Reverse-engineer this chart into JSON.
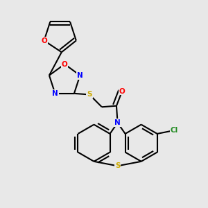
{
  "background_color": "#e8e8e8",
  "line_color": "#000000",
  "atom_colors": {
    "O": "#ff0000",
    "N": "#0000ff",
    "S": "#ccaa00",
    "Cl": "#228b22"
  },
  "font_size": 7.5,
  "line_width": 1.5
}
